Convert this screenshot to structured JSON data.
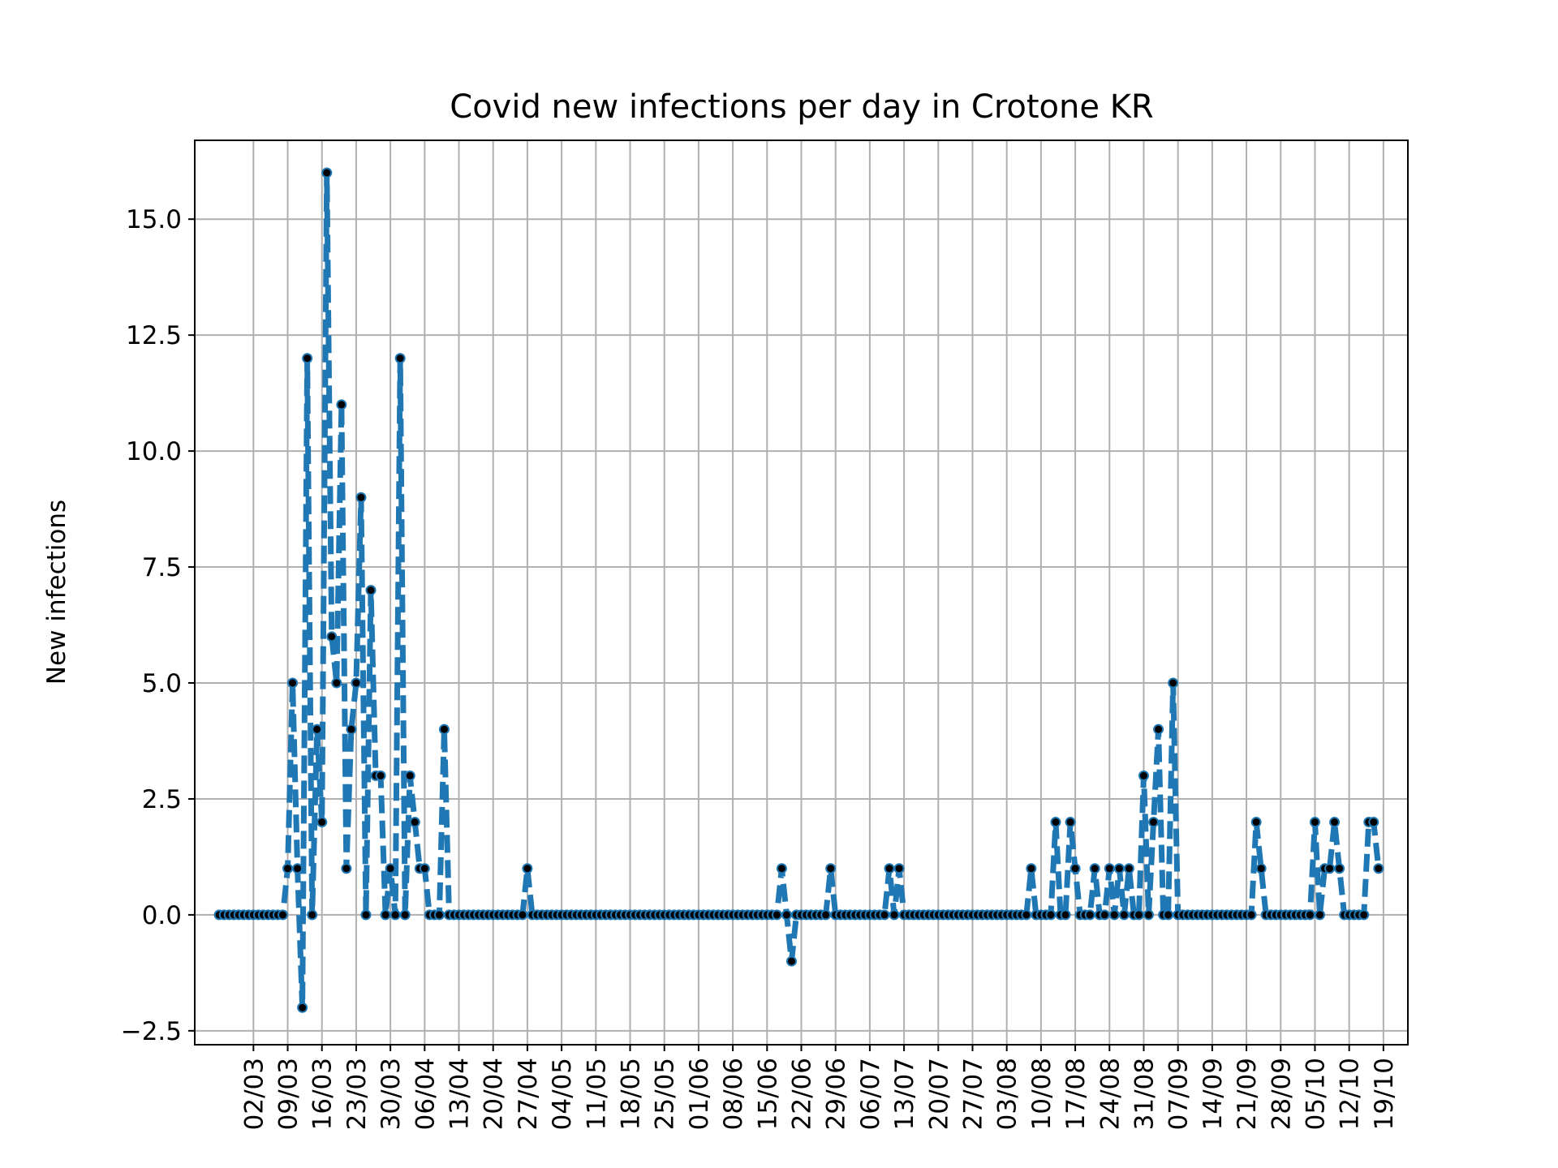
{
  "chart_data": {
    "type": "line",
    "title": "Covid new infections per day in Crotone KR",
    "xlabel": "",
    "ylabel": "New infections",
    "ylim": [
      -2.8,
      16.7
    ],
    "xlim": [
      "2020-02-19",
      "2020-10-24"
    ],
    "grid": true,
    "y_ticks": [
      -2.5,
      0.0,
      2.5,
      5.0,
      7.5,
      10.0,
      12.5,
      15.0
    ],
    "y_tick_labels": [
      "−2.5",
      "0.0",
      "2.5",
      "5.0",
      "7.5",
      "10.0",
      "12.5",
      "15.0"
    ],
    "x_ticks": [
      "2020-03-02",
      "2020-03-09",
      "2020-03-16",
      "2020-03-23",
      "2020-03-30",
      "2020-04-06",
      "2020-04-13",
      "2020-04-20",
      "2020-04-27",
      "2020-05-04",
      "2020-05-11",
      "2020-05-18",
      "2020-05-25",
      "2020-06-01",
      "2020-06-08",
      "2020-06-15",
      "2020-06-22",
      "2020-06-29",
      "2020-07-06",
      "2020-07-13",
      "2020-07-20",
      "2020-07-27",
      "2020-08-03",
      "2020-08-10",
      "2020-08-17",
      "2020-08-24",
      "2020-08-31",
      "2020-09-07",
      "2020-09-14",
      "2020-09-21",
      "2020-09-28",
      "2020-10-05",
      "2020-10-12",
      "2020-10-19"
    ],
    "x_tick_labels": [
      "02/03",
      "09/03",
      "16/03",
      "23/03",
      "30/03",
      "06/04",
      "13/04",
      "20/04",
      "27/04",
      "04/05",
      "11/05",
      "18/05",
      "25/05",
      "01/06",
      "08/06",
      "15/06",
      "22/06",
      "29/06",
      "06/07",
      "13/07",
      "20/07",
      "27/07",
      "03/08",
      "10/08",
      "17/08",
      "24/08",
      "31/08",
      "07/09",
      "14/09",
      "21/09",
      "28/09",
      "05/10",
      "12/10",
      "19/10"
    ],
    "line_color": "#1f77b4",
    "line_style": "dashed",
    "marker_color": "#000000",
    "series": [
      {
        "start_date": "2020-02-24",
        "values": [
          0,
          0,
          0,
          0,
          0,
          0,
          0,
          0,
          0,
          0,
          0,
          0,
          0,
          0,
          1,
          5,
          1,
          -2,
          12,
          0,
          4,
          2,
          16,
          6,
          5,
          11,
          1,
          4,
          5,
          9,
          0,
          7,
          3,
          3,
          0,
          1,
          0,
          12,
          0,
          3,
          2,
          1,
          1,
          0,
          0,
          0,
          4,
          0,
          0,
          0,
          0,
          0,
          0,
          0,
          0,
          0,
          0,
          0,
          0,
          0,
          0,
          0,
          0,
          1,
          0,
          0,
          0,
          0,
          0,
          0,
          0,
          0,
          0,
          0,
          0,
          0,
          0,
          0,
          0,
          0,
          0,
          0,
          0,
          0,
          0,
          0,
          0,
          0,
          0,
          0,
          0,
          0,
          0,
          0,
          0,
          0,
          0,
          0,
          0,
          0,
          0,
          0,
          0,
          0,
          0,
          0,
          0,
          0,
          0,
          0,
          0,
          0,
          0,
          0,
          0,
          1,
          0,
          -1,
          0,
          0,
          0,
          0,
          0,
          0,
          0,
          1,
          0,
          0,
          0,
          0,
          0,
          0,
          0,
          0,
          0,
          0,
          0,
          1,
          0,
          1,
          0,
          0,
          0,
          0,
          0,
          0,
          0,
          0,
          0,
          0,
          0,
          0,
          0,
          0,
          0,
          0,
          0,
          0,
          0,
          0,
          0,
          0,
          0,
          0,
          0,
          0,
          1,
          0,
          0,
          0,
          0,
          2,
          0,
          0,
          2,
          1,
          0,
          0,
          0,
          1,
          0,
          0,
          1,
          0,
          1,
          0,
          1,
          0,
          0,
          3,
          0,
          2,
          4,
          0,
          0,
          5,
          0,
          0,
          0,
          0,
          0,
          0,
          0,
          0,
          0,
          0,
          0,
          0,
          0,
          0,
          0,
          0,
          2,
          1,
          0,
          0,
          0,
          0,
          0,
          0,
          0,
          0,
          0,
          0,
          2,
          0,
          1,
          1,
          2,
          1,
          0,
          0,
          0,
          0,
          0,
          2,
          2,
          1
        ]
      }
    ]
  }
}
